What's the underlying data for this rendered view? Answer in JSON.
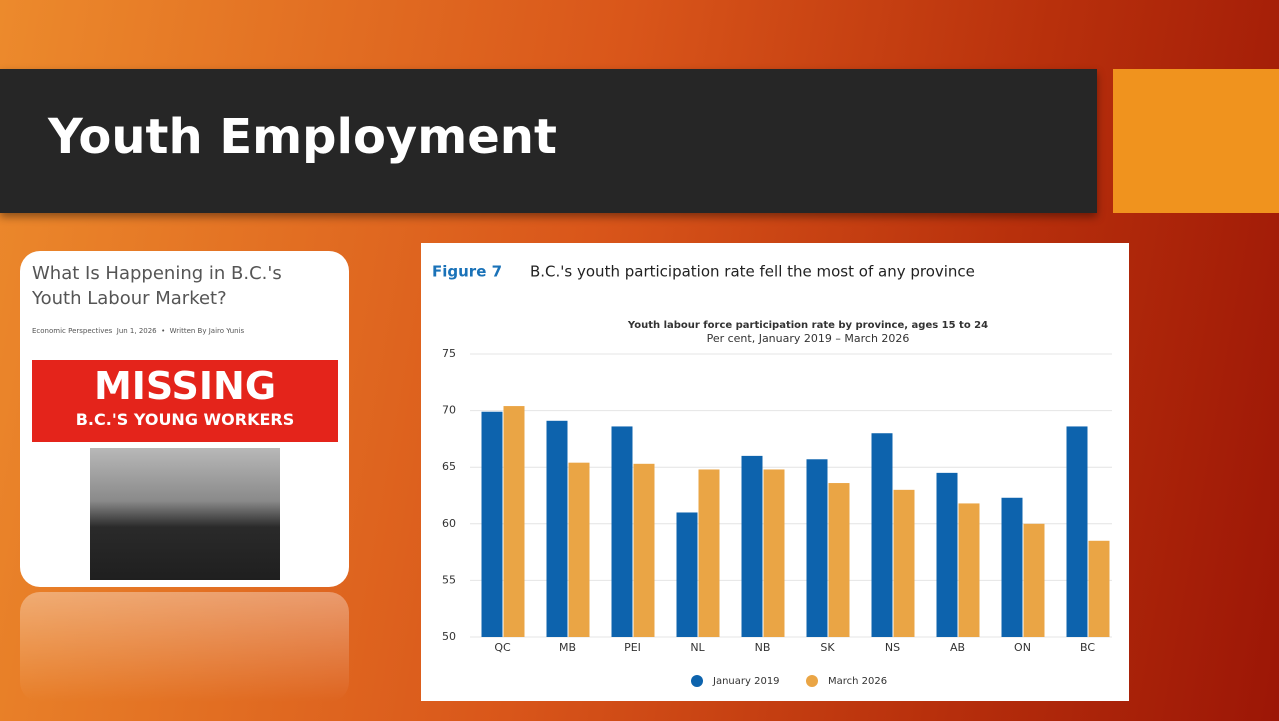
{
  "slide": {
    "title": "Youth Employment"
  },
  "article": {
    "headline": "What Is Happening in B.C.'s Youth Labour Market?",
    "byline": "Economic Perspectives  Jun 1, 2026  •  Written By Jairo Yunis",
    "banner_title": "MISSING",
    "banner_subtitle": "B.C.'S YOUNG WORKERS"
  },
  "chart_data": {
    "type": "bar",
    "figure_label": "Figure 7",
    "title": "B.C.'s youth participation rate fell the most of any province",
    "chart_title": "Youth labour force participation rate by province, ages 15 to 24",
    "subtitle": "Per cent, January 2019 – March 2026",
    "categories": [
      "QC",
      "MB",
      "PEI",
      "NL",
      "NB",
      "SK",
      "NS",
      "AB",
      "ON",
      "BC"
    ],
    "series": [
      {
        "name": "January 2019",
        "color": "#0d63ad",
        "values": [
          69.9,
          69.1,
          68.6,
          61.0,
          66.0,
          65.7,
          68.0,
          64.5,
          62.3,
          68.6
        ]
      },
      {
        "name": "March 2026",
        "color": "#eaa545",
        "values": [
          70.4,
          65.4,
          65.3,
          64.8,
          64.8,
          63.6,
          63.0,
          61.8,
          60.0,
          58.5
        ]
      }
    ],
    "ylim": [
      50,
      75
    ],
    "yticks": [
      50,
      55,
      60,
      65,
      70,
      75
    ],
    "grid": true,
    "legend": "bottom"
  }
}
